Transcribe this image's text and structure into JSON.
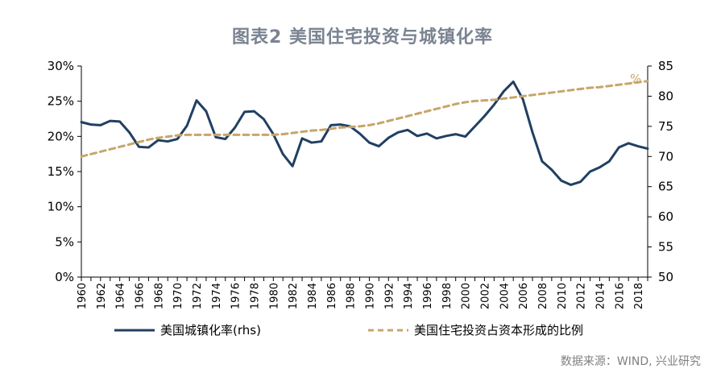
{
  "title": "图表2  美国住宅投资与城镇化率",
  "source": "数据来源：WIND, 兴业研究",
  "colors": {
    "urbanization": "#203f62",
    "residential": "#c7a56b",
    "axis": "#000000",
    "title": "#7a8391"
  },
  "chart_data": {
    "type": "line",
    "title": "图表2  美国住宅投资与城镇化率",
    "x": [
      1960,
      1961,
      1962,
      1963,
      1964,
      1965,
      1966,
      1967,
      1968,
      1969,
      1970,
      1971,
      1972,
      1973,
      1974,
      1975,
      1976,
      1977,
      1978,
      1979,
      1980,
      1981,
      1982,
      1983,
      1984,
      1985,
      1986,
      1987,
      1988,
      1989,
      1990,
      1991,
      1992,
      1993,
      1994,
      1995,
      1996,
      1997,
      1998,
      1999,
      2000,
      2001,
      2002,
      2003,
      2004,
      2005,
      2006,
      2007,
      2008,
      2009,
      2010,
      2011,
      2012,
      2013,
      2014,
      2015,
      2016,
      2017,
      2018,
      2019
    ],
    "x_tick_labels": [
      "1960",
      "1962",
      "1964",
      "1966",
      "1968",
      "1970",
      "1972",
      "1974",
      "1976",
      "1978",
      "1980",
      "1982",
      "1984",
      "1986",
      "1988",
      "1990",
      "1992",
      "1994",
      "1996",
      "1998",
      "2000",
      "2002",
      "2004",
      "2006",
      "2008",
      "2010",
      "2012",
      "2014",
      "2016",
      "2018"
    ],
    "left_axis": {
      "range": [
        0,
        0.3
      ],
      "ticks": [
        "0%",
        "5%",
        "10%",
        "15%",
        "20%",
        "25%",
        "30%"
      ]
    },
    "right_axis": {
      "range": [
        50,
        85
      ],
      "ticks": [
        "50",
        "55",
        "60",
        "65",
        "70",
        "75",
        "80",
        "85"
      ],
      "unit_label": "%"
    },
    "series": [
      {
        "name": "美国城镇化率(rhs)",
        "axis": "right",
        "style": "solid",
        "values": [
          75.7,
          75.3,
          75.2,
          75.9,
          75.8,
          74.0,
          71.6,
          71.5,
          72.7,
          72.5,
          72.9,
          75.1,
          79.3,
          77.5,
          73.2,
          72.9,
          74.8,
          77.4,
          77.5,
          76.2,
          73.7,
          70.4,
          68.4,
          73.0,
          72.3,
          72.5,
          75.2,
          75.3,
          75.0,
          73.8,
          72.3,
          71.7,
          73.1,
          74.0,
          74.4,
          73.4,
          73.8,
          73.0,
          73.4,
          73.7,
          73.3,
          75.0,
          76.7,
          78.6,
          80.8,
          82.4,
          79.5,
          74.0,
          69.2,
          67.8,
          66.0,
          65.3,
          65.8,
          67.5,
          68.2,
          69.2,
          71.5,
          72.2,
          71.7,
          71.3
        ]
      },
      {
        "name": "美国住宅投资占资本形成的比例",
        "axis": "right",
        "style": "dashed",
        "values": [
          70.0,
          70.4,
          70.8,
          71.2,
          71.6,
          72.0,
          72.4,
          72.8,
          73.1,
          73.3,
          73.5,
          73.6,
          73.6,
          73.6,
          73.6,
          73.6,
          73.6,
          73.6,
          73.6,
          73.6,
          73.6,
          73.7,
          73.9,
          74.1,
          74.3,
          74.4,
          74.6,
          74.8,
          74.9,
          75.0,
          75.2,
          75.5,
          75.9,
          76.3,
          76.7,
          77.1,
          77.5,
          77.9,
          78.3,
          78.7,
          79.0,
          79.2,
          79.3,
          79.4,
          79.6,
          79.8,
          80.0,
          80.2,
          80.4,
          80.6,
          80.8,
          81.0,
          81.2,
          81.4,
          81.5,
          81.7,
          81.9,
          82.1,
          82.3,
          82.5
        ]
      }
    ],
    "legend": {
      "placement": "bottom",
      "labels": [
        "美国城镇化率(rhs)",
        "美国住宅投资占资本形成的比例"
      ]
    },
    "grid": false
  }
}
